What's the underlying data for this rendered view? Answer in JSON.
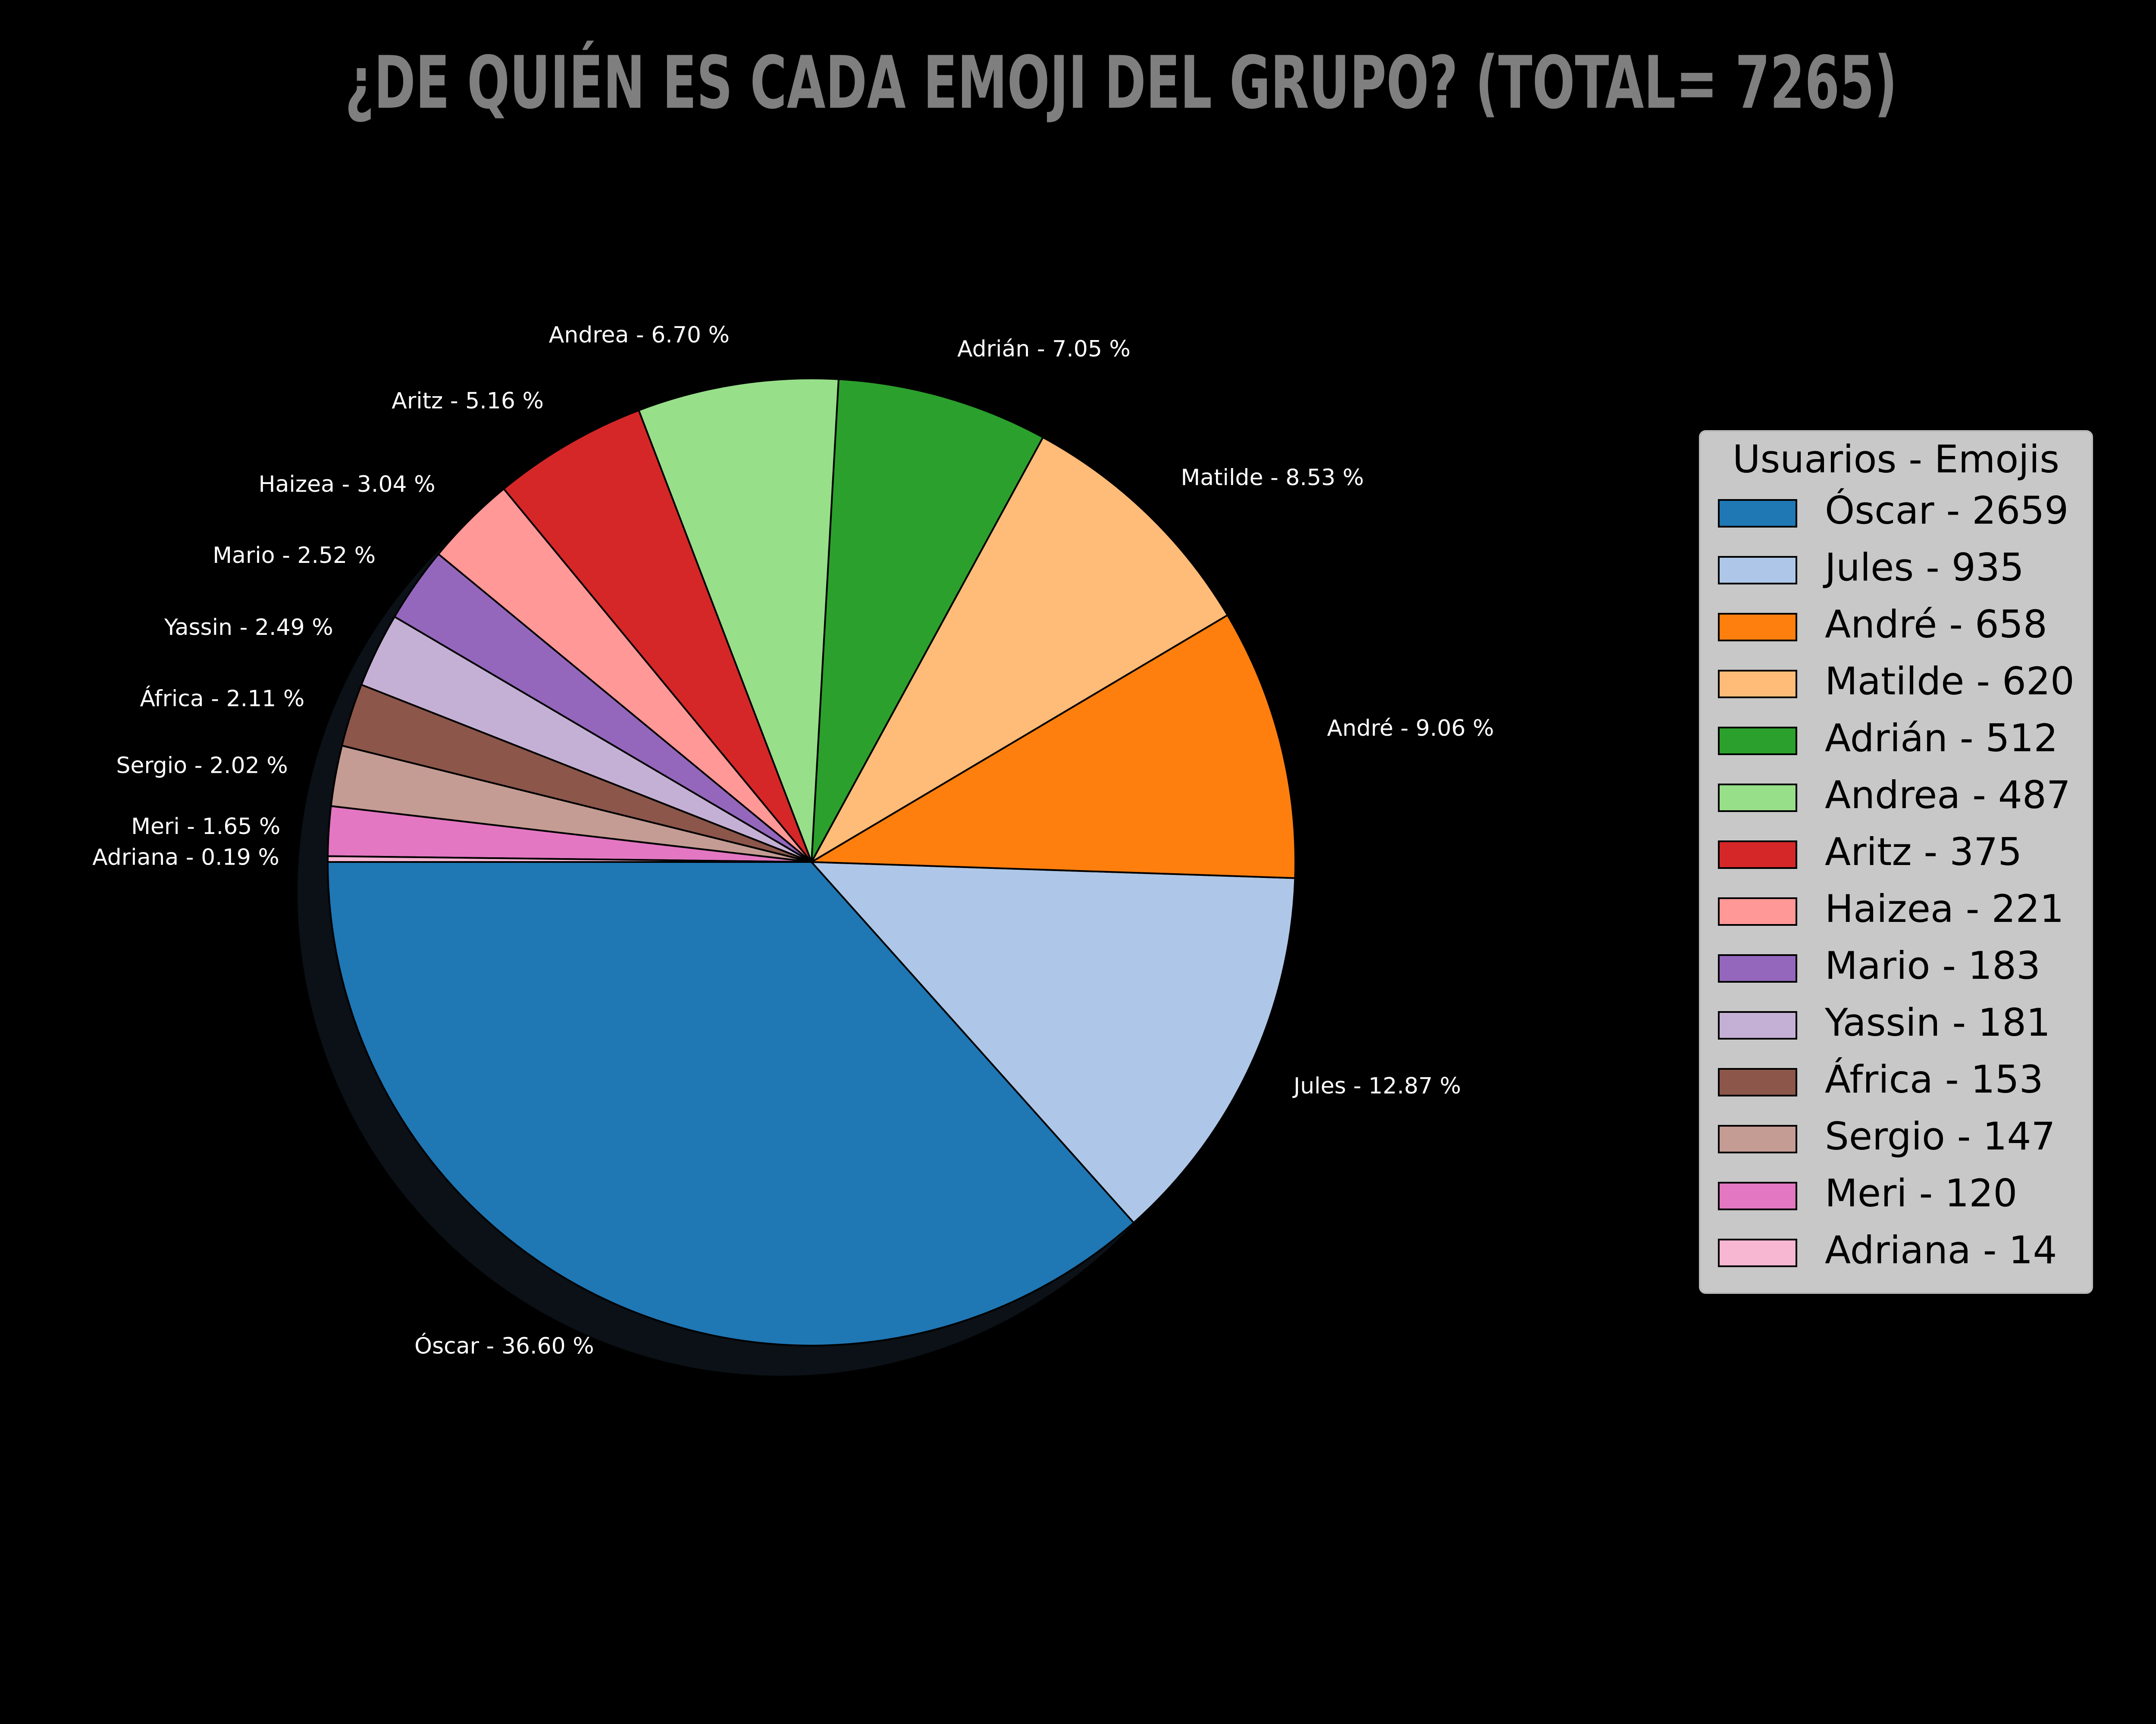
{
  "chart_data": {
    "type": "pie",
    "title": "¿DE QUIÉN ES CADA EMOJI DEL GRUPO? (TOTAL= 7265)",
    "total": 7265,
    "legend": {
      "title": "Usuarios - Emojis",
      "placement": "right",
      "entries": [
        "Óscar - 2659",
        "Jules - 935",
        "André - 658",
        "Matilde - 620",
        "Adrián - 512",
        "Andrea - 487",
        "Aritz - 375",
        "Haizea - 221",
        "Mario - 183",
        "Yassin - 181",
        "África - 153",
        "Sergio - 147",
        "Meri - 120",
        "Adriana - 14"
      ]
    },
    "slices": [
      {
        "name": "Óscar",
        "value": 2659,
        "percent_label": "Óscar - 36.60 %",
        "color": "#1f77b4"
      },
      {
        "name": "Jules",
        "value": 935,
        "percent_label": "Jules - 12.87 %",
        "color": "#aec7e8"
      },
      {
        "name": "André",
        "value": 658,
        "percent_label": "André - 9.06 %",
        "color": "#ff7f0e"
      },
      {
        "name": "Matilde",
        "value": 620,
        "percent_label": "Matilde - 8.53 %",
        "color": "#ffbb78"
      },
      {
        "name": "Adrián",
        "value": 512,
        "percent_label": "Adrián - 7.05 %",
        "color": "#2ca02c"
      },
      {
        "name": "Andrea",
        "value": 487,
        "percent_label": "Andrea - 6.70 %",
        "color": "#98df8a"
      },
      {
        "name": "Aritz",
        "value": 375,
        "percent_label": "Aritz - 5.16 %",
        "color": "#d62728"
      },
      {
        "name": "Haizea",
        "value": 221,
        "percent_label": "Haizea - 3.04 %",
        "color": "#ff9896"
      },
      {
        "name": "Mario",
        "value": 183,
        "percent_label": "Mario - 2.52 %",
        "color": "#9467bd"
      },
      {
        "name": "Yassin",
        "value": 181,
        "percent_label": "Yassin - 2.49 %",
        "color": "#c5b0d5"
      },
      {
        "name": "África",
        "value": 153,
        "percent_label": "África - 2.11 %",
        "color": "#8c564b"
      },
      {
        "name": "Sergio",
        "value": 147,
        "percent_label": "Sergio - 2.02 %",
        "color": "#c49c94"
      },
      {
        "name": "Meri",
        "value": 120,
        "percent_label": "Meri - 1.65 %",
        "color": "#e377c2"
      },
      {
        "name": "Adriana",
        "value": 14,
        "percent_label": "Adriana - 0.19 %",
        "color": "#f7b6d2"
      }
    ],
    "start_angle_deg": 180,
    "direction": "clockwise",
    "shadow": true
  }
}
